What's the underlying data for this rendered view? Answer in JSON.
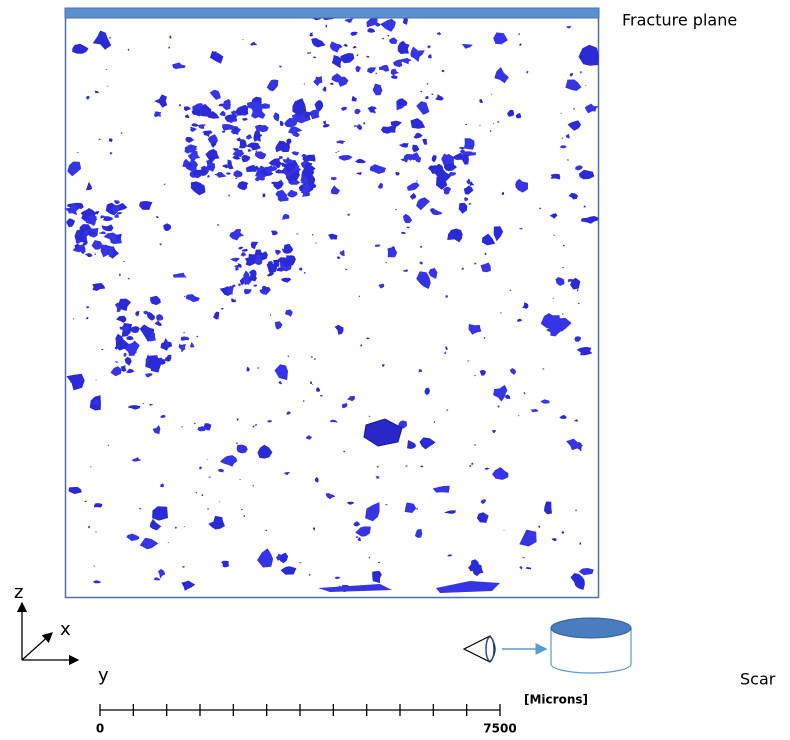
{
  "figure": {
    "top_label": "Fracture plane",
    "bottom_label": "Scar",
    "axes": {
      "z": "z",
      "x": "x",
      "y": "y"
    },
    "scale_bar": {
      "unit": "[Microns]",
      "range": [
        0,
        7500
      ],
      "ticks": [
        0,
        625,
        1250,
        1875,
        2500,
        3125,
        3750,
        4375,
        5000,
        5625,
        6250,
        6875,
        7500
      ]
    }
  }
}
